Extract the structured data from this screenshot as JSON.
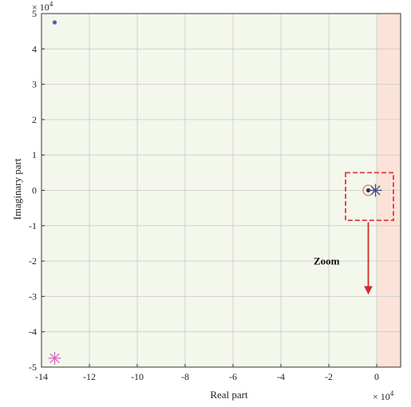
{
  "chart_data": {
    "type": "scatter",
    "title": "",
    "xlabel": "Real part",
    "ylabel": "Imaginary part",
    "x_multiplier_label": "× 10",
    "x_multiplier_exp": "4",
    "y_multiplier_label": "× 10",
    "y_multiplier_exp": "4",
    "xlim": [
      -14,
      1
    ],
    "ylim": [
      -5,
      5
    ],
    "xticks": [
      -14,
      -12,
      -10,
      -8,
      -6,
      -4,
      -2,
      0
    ],
    "xtick_labels": [
      "-14",
      "-12",
      "-10",
      "-8",
      "-6",
      "-4",
      "-2",
      "0"
    ],
    "yticks": [
      -5,
      -4,
      -3,
      -2,
      -1,
      0,
      1,
      2,
      3,
      4,
      5
    ],
    "ytick_labels": [
      "-5",
      "-4",
      "-3",
      "-2",
      "-1",
      "0",
      "1",
      "2",
      "3",
      "4",
      "5"
    ],
    "grid": true,
    "regions": [
      {
        "name": "stable-region",
        "x_range": [
          -14,
          0
        ],
        "color": "#f3f7ec"
      },
      {
        "name": "unstable-region",
        "x_range": [
          0,
          1
        ],
        "color": "#fbe3d9"
      }
    ],
    "series": [
      {
        "marker": "dot",
        "color": "#4a5fa8",
        "points": [
          [
            -13.45,
            4.75
          ]
        ]
      },
      {
        "marker": "asterisk",
        "color": "#d46ac0",
        "points": [
          [
            -13.45,
            -4.75
          ]
        ]
      },
      {
        "marker": "circle",
        "color": "#e07a55",
        "points": [
          [
            -0.35,
            0.0
          ]
        ]
      },
      {
        "marker": "dot",
        "color": "#333333",
        "points": [
          [
            -0.35,
            0.0
          ]
        ]
      },
      {
        "marker": "asterisk",
        "color": "#3b4a8a",
        "points": [
          [
            -0.05,
            0.0
          ]
        ]
      }
    ],
    "annotations": {
      "zoom_box": {
        "x_range": [
          -1.3,
          0.7
        ],
        "y_range": [
          -0.85,
          0.5
        ],
        "color": "#e23b3b"
      },
      "zoom_arrow": {
        "x": -0.35,
        "y_from": -0.9,
        "y_to": -2.9,
        "color": "#d42a2a"
      },
      "zoom_label": {
        "text": "Zoom",
        "x": -1.55,
        "y": -2.1
      }
    }
  }
}
